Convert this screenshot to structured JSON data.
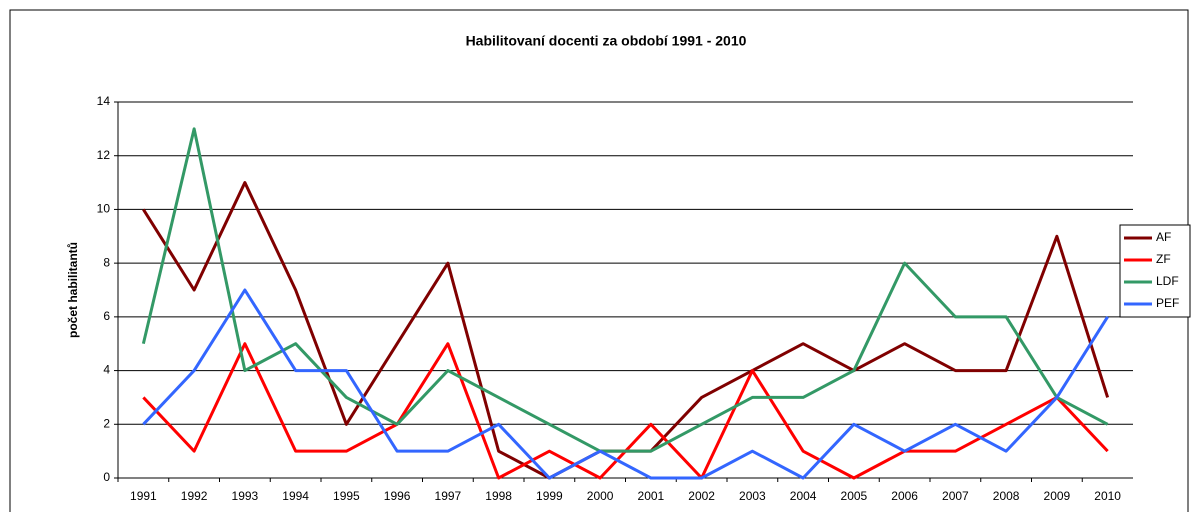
{
  "chart_data": {
    "type": "line",
    "title": "Habilitovaní docenti za období 1991 - 2010",
    "y_label": "počet habilitantů",
    "categories": [
      "1991",
      "1992",
      "1993",
      "1994",
      "1995",
      "1996",
      "1997",
      "1998",
      "1999",
      "2000",
      "2001",
      "2002",
      "2003",
      "2004",
      "2005",
      "2006",
      "2007",
      "2008",
      "2009",
      "2010"
    ],
    "series": [
      {
        "name": "AF",
        "color": "#800000",
        "values": [
          10,
          7,
          11,
          7,
          2,
          5,
          8,
          1,
          0,
          1,
          1,
          3,
          4,
          5,
          4,
          5,
          4,
          4,
          9,
          3
        ]
      },
      {
        "name": "ZF",
        "color": "#ff0000",
        "values": [
          3,
          1,
          5,
          1,
          1,
          2,
          5,
          0,
          1,
          0,
          2,
          0,
          4,
          1,
          0,
          1,
          1,
          2,
          3,
          1
        ]
      },
      {
        "name": "LDF",
        "color": "#339966",
        "values": [
          5,
          13,
          4,
          5,
          3,
          2,
          4,
          3,
          2,
          1,
          1,
          2,
          3,
          3,
          4,
          8,
          6,
          6,
          3,
          2
        ]
      },
      {
        "name": "PEF",
        "color": "#3366ff",
        "values": [
          2,
          4,
          7,
          4,
          4,
          1,
          1,
          2,
          0,
          1,
          0,
          0,
          1,
          0,
          2,
          1,
          2,
          1,
          3,
          6
        ]
      }
    ],
    "ylim": [
      0,
      14
    ],
    "yticks": [
      0,
      2,
      4,
      6,
      8,
      10,
      12,
      14
    ],
    "grid": true,
    "legend": "right"
  }
}
